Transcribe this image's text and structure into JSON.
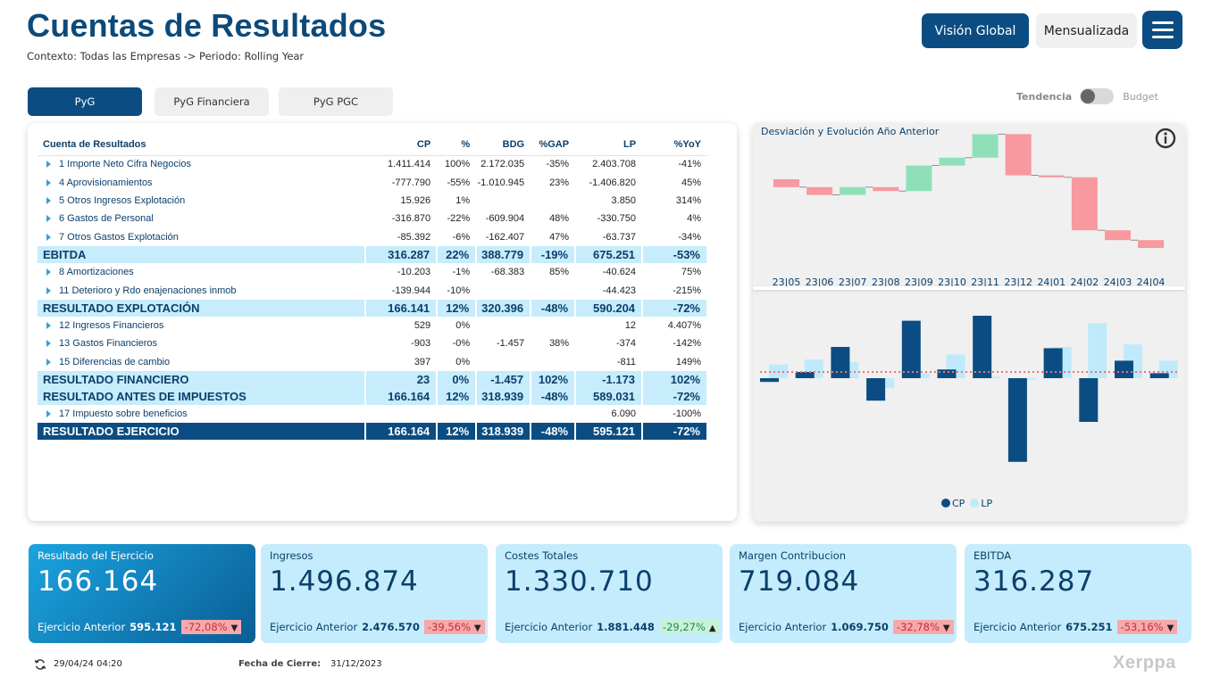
{
  "header": {
    "title": "Cuentas de Resultados",
    "context": "Contexto: Todas las Empresas -> Periodo: Rolling Year",
    "btn_global": "Visión Global",
    "btn_mensualizada": "Mensualizada"
  },
  "tabs": [
    {
      "label": "PyG",
      "active": true
    },
    {
      "label": "PyG Financiera",
      "active": false
    },
    {
      "label": "PyG PGC",
      "active": false
    }
  ],
  "toggle": {
    "left": "Tendencia",
    "right": "Budget"
  },
  "table": {
    "headers": [
      "Cuenta de Resultados",
      "CP",
      "%",
      "BDG",
      "%GAP",
      "LP",
      "%YoY"
    ],
    "rows": [
      {
        "type": "detail",
        "cells": [
          "1 Importe Neto Cifra Negocios",
          "1.411.414",
          "100%",
          "2.172.035",
          "-35%",
          "2.403.708",
          "-41%"
        ]
      },
      {
        "type": "detail",
        "cells": [
          "4 Aprovisionamientos",
          "-777.790",
          "-55%",
          "-1.010.945",
          "23%",
          "-1.406.820",
          "45%"
        ]
      },
      {
        "type": "detail",
        "cells": [
          "5 Otros Ingresos Explotación",
          "15.926",
          "1%",
          "",
          "",
          "3.850",
          "314%"
        ]
      },
      {
        "type": "detail",
        "cells": [
          "6 Gastos de Personal",
          "-316.870",
          "-22%",
          "-609.904",
          "48%",
          "-330.750",
          "4%"
        ]
      },
      {
        "type": "detail",
        "cells": [
          "7 Otros Gastos Explotación",
          "-85.392",
          "-6%",
          "-162.407",
          "47%",
          "-63.737",
          "-34%"
        ]
      },
      {
        "type": "sub",
        "cells": [
          "EBITDA",
          "316.287",
          "22%",
          "388.779",
          "-19%",
          "675.251",
          "-53%"
        ]
      },
      {
        "type": "detail",
        "cells": [
          "8 Amortizaciones",
          "-10.203",
          "-1%",
          "-68.383",
          "85%",
          "-40.624",
          "75%"
        ]
      },
      {
        "type": "detail",
        "cells": [
          "11 Deterioro y Rdo enajenaciones inmob",
          "-139.944",
          "-10%",
          "",
          "",
          "-44.423",
          "-215%"
        ]
      },
      {
        "type": "sub",
        "cells": [
          "RESULTADO EXPLOTACIÓN",
          "166.141",
          "12%",
          "320.396",
          "-48%",
          "590.204",
          "-72%"
        ]
      },
      {
        "type": "detail",
        "cells": [
          "12 Ingresos Financieros",
          "529",
          "0%",
          "",
          "",
          "12",
          "4.407%"
        ]
      },
      {
        "type": "detail",
        "cells": [
          "13 Gastos Financieros",
          "-903",
          "-0%",
          "-1.457",
          "38%",
          "-374",
          "-142%"
        ]
      },
      {
        "type": "detail",
        "cells": [
          "15 Diferencias de cambio",
          "397",
          "0%",
          "",
          "",
          "-811",
          "149%"
        ]
      },
      {
        "type": "sub",
        "cells": [
          "RESULTADO FINANCIERO",
          "23",
          "0%",
          "-1.457",
          "102%",
          "-1.173",
          "102%"
        ]
      },
      {
        "type": "sub",
        "cells": [
          "RESULTADO ANTES DE IMPUESTOS",
          "166.164",
          "12%",
          "318.939",
          "-48%",
          "589.031",
          "-72%"
        ]
      },
      {
        "type": "detail",
        "cells": [
          "17 Impuesto sobre beneficios",
          "",
          "",
          "",
          "",
          "6.090",
          "-100%"
        ]
      },
      {
        "type": "tot",
        "cells": [
          "RESULTADO EJERCICIO",
          "166.164",
          "12%",
          "318.939",
          "-48%",
          "595.121",
          "-72%"
        ]
      }
    ]
  },
  "chart": {
    "title": "Desviación y Evolución Año Anterior",
    "legend": [
      "CP",
      "LP"
    ]
  },
  "chart_data": [
    {
      "type": "waterfall",
      "categories": [
        "23|05",
        "23|06",
        "23|07",
        "23|08",
        "23|09",
        "23|10",
        "23|11",
        "23|12",
        "24|01",
        "24|02",
        "24|03",
        "24|04"
      ],
      "values": [
        -4,
        -4,
        4,
        -2,
        13,
        4,
        12,
        -21,
        -1,
        -27,
        -5,
        -4
      ],
      "colors": {
        "pos": "#8fe0b8",
        "neg": "#f8989f"
      }
    },
    {
      "type": "bar",
      "categories": [
        "23|05",
        "23|06",
        "23|07",
        "23|08",
        "23|09",
        "23|10",
        "23|11",
        "23|12",
        "24|01",
        "24|02",
        "24|03",
        "24|04"
      ],
      "series": [
        {
          "name": "CP",
          "color": "#0b4d82",
          "values": [
            -3,
            5,
            25,
            -18,
            46,
            7,
            50,
            -67,
            24,
            -35,
            14,
            4
          ]
        },
        {
          "name": "LP",
          "color": "#bfeafb",
          "values": [
            11,
            15,
            13,
            -8,
            4,
            19,
            1,
            -1,
            25,
            44,
            27,
            14
          ]
        }
      ],
      "average": 5
    }
  ],
  "kpis": [
    {
      "title": "Resultado del Ejercicio",
      "value": "166.164",
      "prev_label": "Ejercicio Anterior",
      "prev_value": "595.121",
      "change": "-72,08%",
      "trend": "down",
      "dark": true
    },
    {
      "title": "Ingresos",
      "value": "1.496.874",
      "prev_label": "Ejercicio Anterior",
      "prev_value": "2.476.570",
      "change": "-39,56%",
      "trend": "down",
      "dark": false
    },
    {
      "title": "Costes Totales",
      "value": "1.330.710",
      "prev_label": "Ejercicio Anterior",
      "prev_value": "1.881.448",
      "change": "-29,27%",
      "trend": "up",
      "dark": false
    },
    {
      "title": "Margen Contribucion",
      "value": "719.084",
      "prev_label": "Ejercicio Anterior",
      "prev_value": "1.069.750",
      "change": "-32,78%",
      "trend": "down",
      "dark": false
    },
    {
      "title": "EBITDA",
      "value": "316.287",
      "prev_label": "Ejercicio Anterior",
      "prev_value": "675.251",
      "change": "-53,16%",
      "trend": "down",
      "dark": false
    }
  ],
  "footer": {
    "refresh_time": "29/04/24 04:20",
    "close_label": "Fecha de Cierre:",
    "close_date": "31/12/2023",
    "brand": "Xerppa"
  }
}
